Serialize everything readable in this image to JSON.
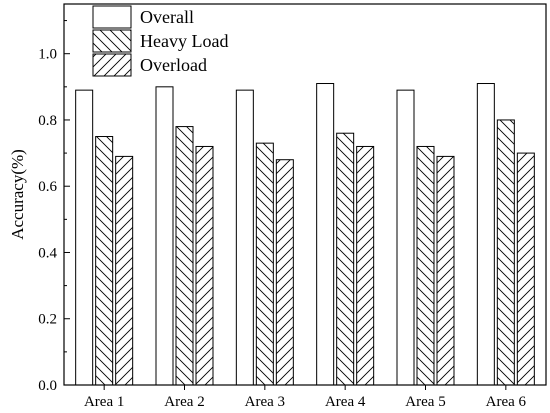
{
  "chart_data": {
    "type": "bar",
    "title": "",
    "xlabel": "",
    "ylabel": "Accuracy(%)",
    "ylim": [
      0.0,
      1.15
    ],
    "yticks": [
      0.0,
      0.2,
      0.4,
      0.6,
      0.8,
      1.0
    ],
    "ytick_labels": [
      "0.0",
      "0.2",
      "0.4",
      "0.6",
      "0.8",
      "1.0"
    ],
    "categories": [
      "Area 1",
      "Area 2",
      "Area 3",
      "Area 4",
      "Area 5",
      "Area 6"
    ],
    "series": [
      {
        "name": "Overall",
        "pattern": "none",
        "values": [
          0.89,
          0.9,
          0.89,
          0.91,
          0.89,
          0.91
        ]
      },
      {
        "name": "Heavy Load",
        "pattern": "backslash",
        "values": [
          0.75,
          0.78,
          0.73,
          0.76,
          0.72,
          0.8
        ]
      },
      {
        "name": "Overload",
        "pattern": "slash",
        "values": [
          0.69,
          0.72,
          0.68,
          0.72,
          0.69,
          0.7
        ]
      }
    ],
    "legend_position": "top-left",
    "grid": false
  }
}
